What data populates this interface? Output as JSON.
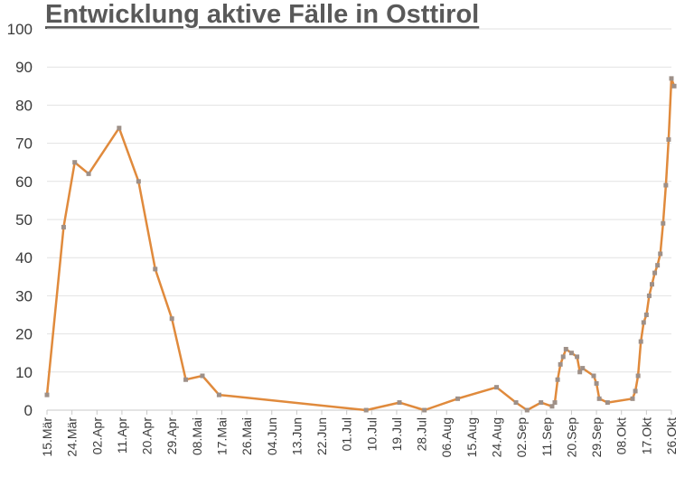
{
  "chart_data": {
    "type": "line",
    "title": "Entwicklung aktive Fälle in Osttirol",
    "xlabel": "",
    "ylabel": "",
    "ylim": [
      0,
      100
    ],
    "yticks": [
      0,
      10,
      20,
      30,
      40,
      50,
      60,
      70,
      80,
      90,
      100
    ],
    "x_tick_labels": [
      "15.Mär",
      "24.Mär",
      "02.Apr",
      "11.Apr",
      "20.Apr",
      "29.Apr",
      "08.Mai",
      "17.Mai",
      "26.Mai",
      "04.Jun",
      "13.Jun",
      "22.Jun",
      "01.Jul",
      "10.Jul",
      "19.Jul",
      "28.Jul",
      "06.Aug",
      "15.Aug",
      "24.Aug",
      "02.Sep",
      "11.Sep",
      "20.Sep",
      "29.Sep",
      "08.Okt",
      "17.Okt",
      "26.Okt"
    ],
    "grid": true,
    "line_color": "#E08A3C",
    "marker_color": "#9E9088",
    "series": [
      {
        "points": [
          [
            "15.Mär",
            4
          ],
          [
            "21.Mär",
            48
          ],
          [
            "25.Mär",
            65
          ],
          [
            "30.Mär",
            62
          ],
          [
            "10.Apr",
            74
          ],
          [
            "17.Apr",
            60
          ],
          [
            "23.Apr",
            37
          ],
          [
            "29.Apr",
            24
          ],
          [
            "04.Mai",
            8
          ],
          [
            "10.Mai",
            9
          ],
          [
            "16.Mai",
            4
          ],
          [
            "08.Jul",
            0
          ],
          [
            "20.Jul",
            2
          ],
          [
            "29.Jul",
            0
          ],
          [
            "10.Aug",
            3
          ],
          [
            "24.Aug",
            6
          ],
          [
            "31.Aug",
            2
          ],
          [
            "04.Sep",
            0
          ],
          [
            "09.Sep",
            2
          ],
          [
            "13.Sep",
            1
          ],
          [
            "14.Sep",
            2
          ],
          [
            "15.Sep",
            8
          ],
          [
            "16.Sep",
            12
          ],
          [
            "17.Sep",
            14
          ],
          [
            "18.Sep",
            16
          ],
          [
            "20.Sep",
            15
          ],
          [
            "22.Sep",
            14
          ],
          [
            "23.Sep",
            10
          ],
          [
            "24.Sep",
            11
          ],
          [
            "28.Sep",
            9
          ],
          [
            "29.Sep",
            7
          ],
          [
            "30.Sep",
            3
          ],
          [
            "03.Okt",
            2
          ],
          [
            "12.Okt",
            3
          ],
          [
            "13.Okt",
            5
          ],
          [
            "14.Okt",
            9
          ],
          [
            "15.Okt",
            18
          ],
          [
            "16.Okt",
            23
          ],
          [
            "17.Okt",
            25
          ],
          [
            "18.Okt",
            30
          ],
          [
            "19.Okt",
            33
          ],
          [
            "20.Okt",
            36
          ],
          [
            "21.Okt",
            38
          ],
          [
            "22.Okt",
            41
          ],
          [
            "23.Okt",
            49
          ],
          [
            "24.Okt",
            59
          ],
          [
            "25.Okt",
            71
          ],
          [
            "26.Okt",
            87
          ],
          [
            "27.Okt",
            85
          ]
        ]
      }
    ]
  }
}
